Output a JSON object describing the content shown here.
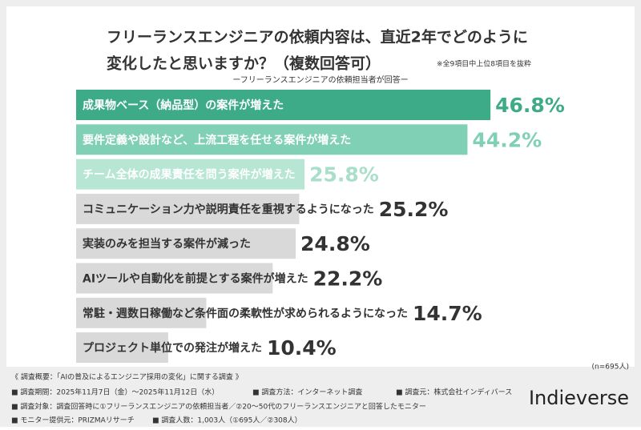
{
  "chart_data": {
    "type": "bar",
    "title_lines": [
      "フリーランスエンジニアの依頼内容は、直近2年でどのように",
      "変化したと思いますか？（複数回答可）"
    ],
    "note": "※全9項目中上位8項目を抜粋",
    "subtitle": "ーフリーランスエンジニアの依頼担当者が回答ー",
    "categories": [
      "成果物ベース（納品型）の案件が増えた",
      "要件定義や設計など、上流工程を任せる案件が増えた",
      "チーム全体の成果責任を問う案件が増えた",
      "コミュニケーション力や説明責任を重視するようになった",
      "実装のみを担当する案件が減った",
      "AIツールや自動化を前提とする案件が増えた",
      "常駐・週数日稼働など条件面の柔軟性が求められるようになった",
      "プロジェクト単位での発注が増えた"
    ],
    "values": [
      46.8,
      44.2,
      25.8,
      25.2,
      24.8,
      22.2,
      14.7,
      10.4
    ],
    "value_labels": [
      "46.8%",
      "44.2%",
      "25.8%",
      "25.2%",
      "24.8%",
      "22.2%",
      "14.7%",
      "10.4%"
    ],
    "colors": [
      "#3eab88",
      "#80d0b6",
      "#b8e6d5",
      "#d9d9d9",
      "#d9d9d9",
      "#d9d9d9",
      "#d9d9d9",
      "#d9d9d9"
    ],
    "label_colors": [
      "#ffffff",
      "#ffffff",
      "#ffffff",
      "#333333",
      "#333333",
      "#333333",
      "#333333",
      "#333333"
    ],
    "value_label_colors": [
      "#3eab88",
      "#80d0b6",
      "#a9dfca",
      "#333333",
      "#333333",
      "#333333",
      "#333333",
      "#333333"
    ],
    "sample_note": "(n=695人)"
  },
  "footer": {
    "heading": "《 調査概要：「AIの普及によるエンジニア採用の変化」に関する調査 》",
    "lines": [
      [
        "■ 調査期間：2025年11月7日（金）～2025年11月12日（水）",
        "■ 調査方法：インターネット調査",
        "■ 調査元：株式会社インディバース"
      ],
      [
        "■ 調査対象：調査回答時に①フリーランスエンジニアの依頼担当者／②20～50代のフリーランスエンジニアと回答したモニター"
      ],
      [
        "■ モニター提供元：PRIZMAリサーチ",
        "■ 調査人数：1,003人（①695人／②308人）"
      ]
    ],
    "logo": "Indieverse"
  }
}
